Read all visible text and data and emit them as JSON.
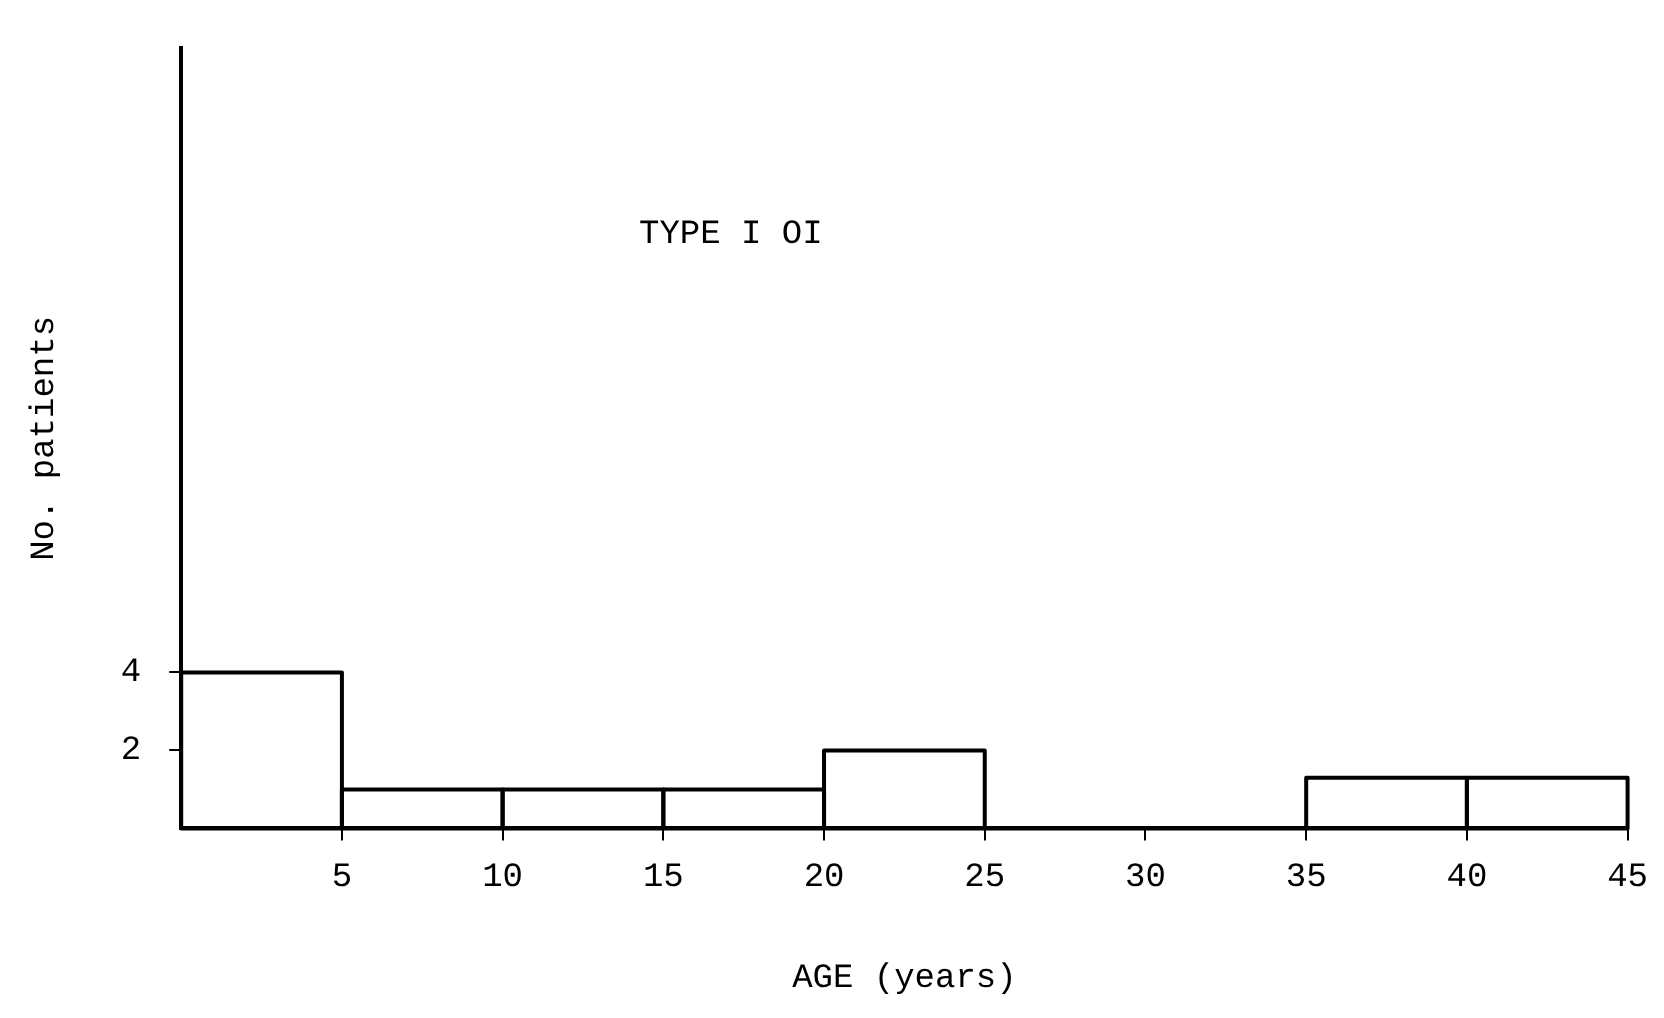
{
  "chart_data": {
    "type": "histogram",
    "title": "TYPE I OI",
    "xlabel": "AGE (years)",
    "ylabel": "No. patients",
    "bins": [
      0,
      5,
      10,
      15,
      20,
      25,
      30,
      35,
      40,
      45
    ],
    "values": [
      4,
      1,
      1,
      1,
      2,
      0,
      0,
      1.3,
      1.3
    ],
    "color": "#000000",
    "xlim": [
      0,
      45
    ],
    "xticks": [
      5,
      10,
      15,
      20,
      25,
      30,
      35,
      40,
      45
    ],
    "ylim": [
      0,
      20
    ],
    "yticks": [
      2,
      4
    ],
    "grid": false
  }
}
